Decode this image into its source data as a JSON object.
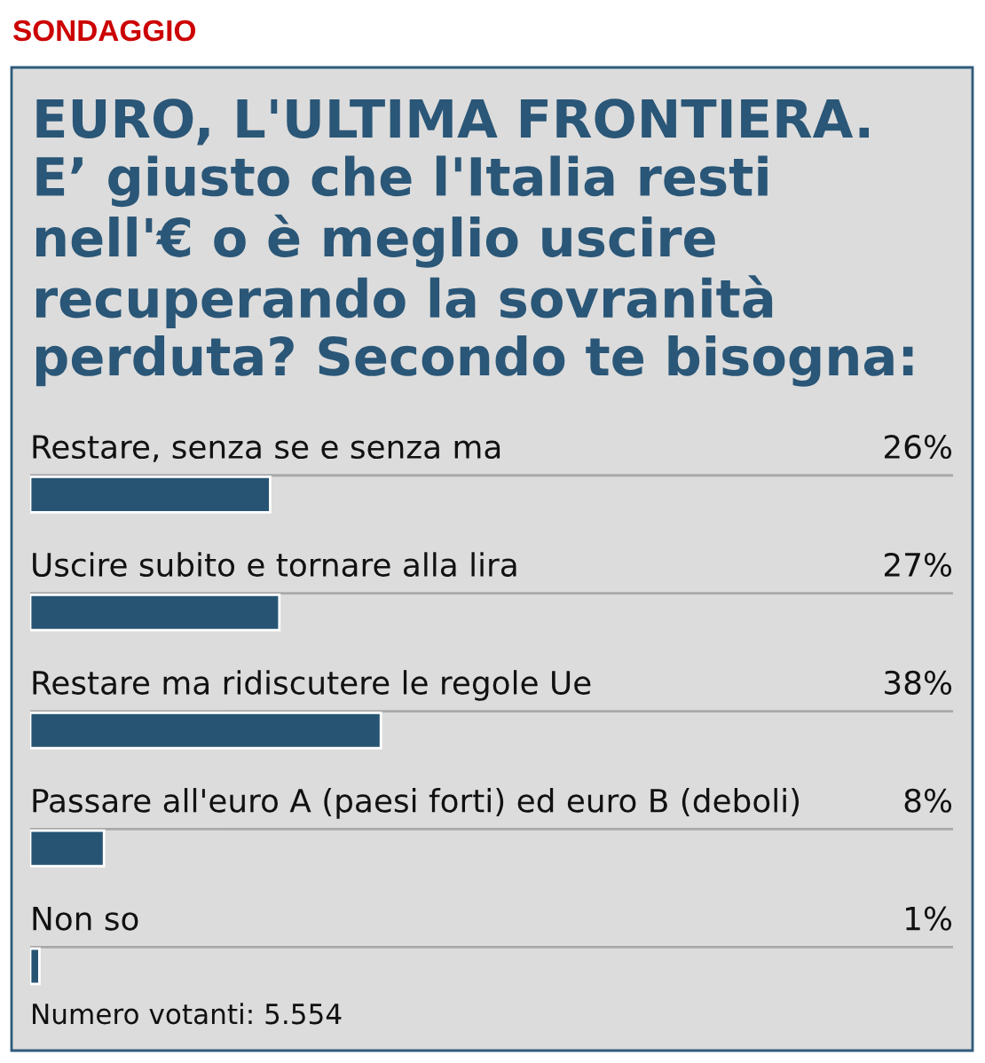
{
  "chart_data": {
    "type": "bar",
    "orientation": "horizontal",
    "title": "EURO, L'ULTIMA FRONTIERA.\nE’ giusto che l'Italia resti\nnell'€ o è meglio uscire\nrecuperando la sovranità\nperduta? Secondo te bisogna:",
    "categories": [
      "Restare, senza se e senza ma",
      "Uscire subito e tornare alla lira",
      "Restare ma ridiscutere le regole Ue",
      "Passare all'euro A (paesi forti) ed euro B (deboli)",
      "Non so"
    ],
    "values": [
      26,
      27,
      38,
      8,
      1
    ],
    "value_labels": [
      "26%",
      "27%",
      "38%",
      "8%",
      "1%"
    ],
    "color": "#275473",
    "grid": "y",
    "annotations": [
      "SONDAGGIO",
      "Numero votanti: 5.554"
    ]
  }
}
